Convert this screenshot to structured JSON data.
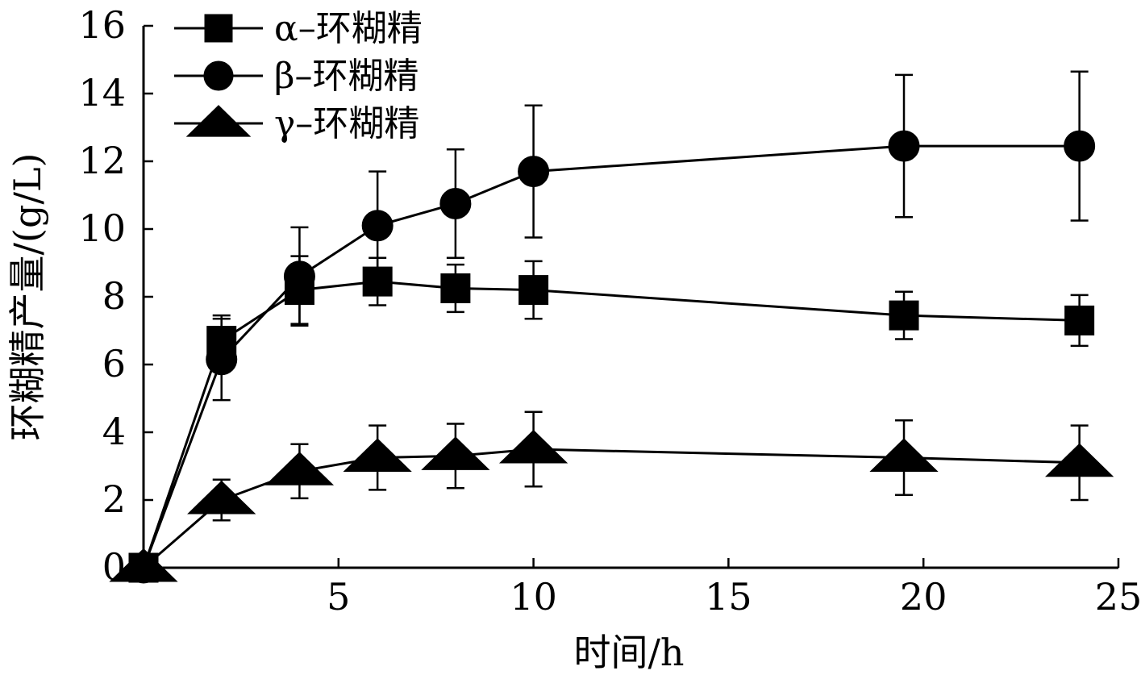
{
  "chart_data": {
    "type": "line",
    "xlabel": "时间/h",
    "ylabel": "环糊精产量/(g/L)",
    "xlim": [
      0,
      25
    ],
    "ylim": [
      0,
      16
    ],
    "xticks": [
      5,
      10,
      15,
      20,
      25
    ],
    "yticks": [
      0,
      2,
      4,
      6,
      8,
      10,
      12,
      14,
      16
    ],
    "grid": false,
    "legend_position": "top-left",
    "series": [
      {
        "name": "α–环糊精",
        "marker": "square",
        "x": [
          0,
          2,
          4,
          6,
          8,
          10,
          19.5,
          24
        ],
        "y": [
          0,
          6.7,
          8.2,
          8.45,
          8.25,
          8.2,
          7.45,
          7.3
        ],
        "err": [
          0,
          0.75,
          1.0,
          0.7,
          0.7,
          0.85,
          0.7,
          0.75
        ]
      },
      {
        "name": "β–环糊精",
        "marker": "circle",
        "x": [
          0,
          2,
          4,
          6,
          8,
          10,
          19.5,
          24
        ],
        "y": [
          0,
          6.15,
          8.6,
          10.1,
          10.75,
          11.7,
          12.45,
          12.45
        ],
        "err": [
          0,
          1.2,
          1.45,
          1.6,
          1.6,
          1.95,
          2.1,
          2.2
        ]
      },
      {
        "name": "γ–环糊精",
        "marker": "triangle",
        "x": [
          0,
          2,
          4,
          6,
          8,
          10,
          19.5,
          24
        ],
        "y": [
          0,
          2.0,
          2.85,
          3.25,
          3.3,
          3.5,
          3.25,
          3.1
        ],
        "err": [
          0,
          0.6,
          0.8,
          0.95,
          0.95,
          1.1,
          1.1,
          1.1
        ]
      }
    ]
  }
}
